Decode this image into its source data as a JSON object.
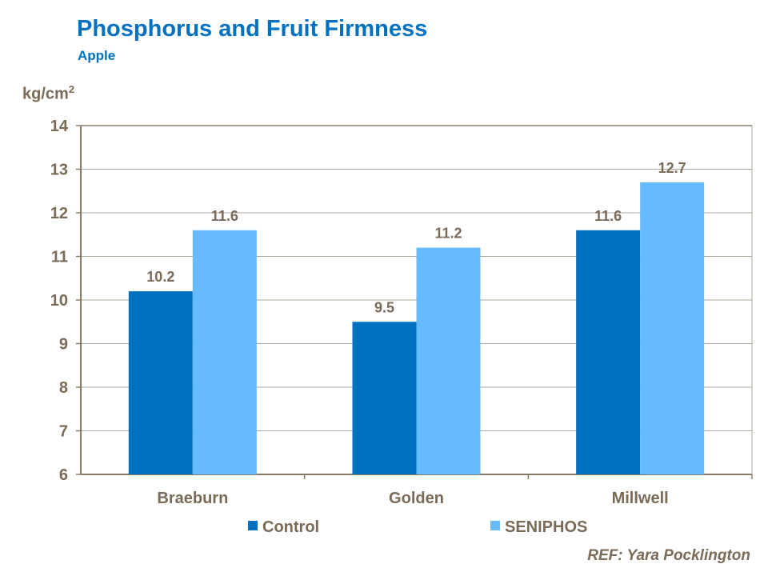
{
  "chart_data": {
    "type": "bar",
    "title": "Phosphorus and Fruit Firmness",
    "subtitle": "Apple",
    "ylabel": "kg/cm",
    "ylabel_superscript": "2",
    "xlabel": "",
    "categories": [
      "Braeburn",
      "Golden",
      "Millwell"
    ],
    "series": [
      {
        "name": "Control",
        "values": [
          10.2,
          9.5,
          11.6
        ],
        "labels": [
          "10.2",
          "9.5",
          "11.6"
        ],
        "color": "#0070c0"
      },
      {
        "name": "SENIPHOS",
        "values": [
          11.6,
          11.2,
          12.7
        ],
        "labels": [
          "11.6",
          "11.2",
          "12.7"
        ],
        "color": "#66bbff"
      }
    ],
    "ylim": [
      6,
      14
    ],
    "yticks": [
      6,
      7,
      8,
      9,
      10,
      11,
      12,
      13,
      14
    ],
    "grid": true,
    "legend_position": "bottom",
    "reference": "REF: Yara Pocklington",
    "text_color": "#7a6a58",
    "title_color": "#0070c0"
  }
}
